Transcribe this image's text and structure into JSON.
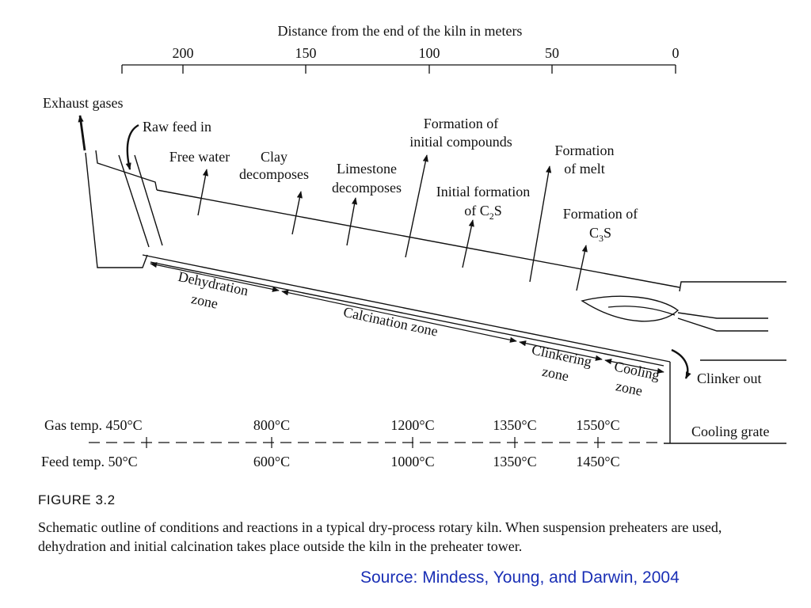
{
  "axis": {
    "title": "Distance from the end of the kiln in meters",
    "ticks": [
      "200",
      "150",
      "100",
      "50",
      "0"
    ]
  },
  "labels": {
    "exhaust": "Exhaust gases",
    "raw_feed": "Raw feed in",
    "free_water": "Free water",
    "clay": [
      "Clay",
      "decomposes"
    ],
    "limestone": [
      "Limestone",
      "decomposes"
    ],
    "initial_compounds": [
      "Formation of",
      "initial compounds"
    ],
    "c2s": [
      "Initial formation",
      "of C",
      "2",
      "S"
    ],
    "melt": [
      "Formation",
      "of melt"
    ],
    "c3s": [
      "Formation of",
      "C",
      "3",
      "S"
    ],
    "clinker_out": "Clinker out",
    "cooling_grate": "Cooling grate"
  },
  "zones": {
    "dehydration": [
      "Dehydration",
      "zone"
    ],
    "calcination": "Calcination zone",
    "clinkering": [
      "Clinkering",
      "zone"
    ],
    "cooling": [
      "Cooling",
      "zone"
    ]
  },
  "temps": {
    "gas_label": "Gas temp. 450°C",
    "gas": [
      "800°C",
      "1200°C",
      "1350°C",
      "1550°C"
    ],
    "feed_label": "Feed temp. 50°C",
    "feed": [
      "600°C",
      "1000°C",
      "1350°C",
      "1450°C"
    ]
  },
  "caption": {
    "figure": "FIGURE 3.2",
    "text": "Schematic outline of conditions and reactions in a typical dry-process rotary kiln. When suspension preheaters are used, dehydration and initial calcination takes place outside the kiln in the preheater tower."
  },
  "source": "Source: Mindess, Young, and Darwin, 2004",
  "colors": {
    "ink": "#111111",
    "source": "#1a2fb5"
  }
}
